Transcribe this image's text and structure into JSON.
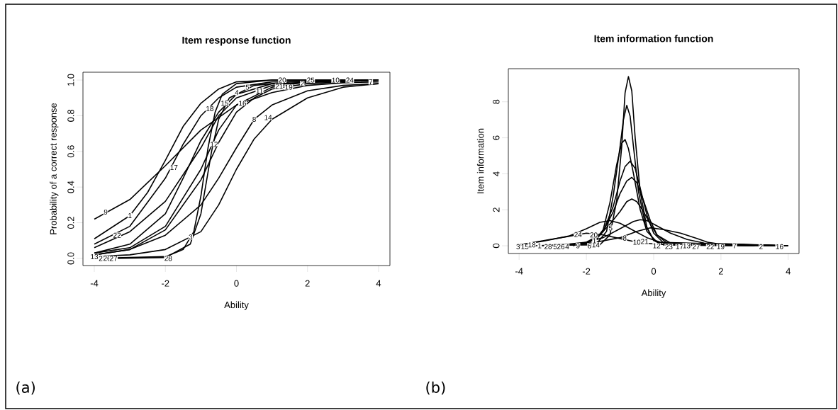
{
  "chart_data": [
    {
      "type": "line",
      "title": "Item response function",
      "xlabel": "Ability",
      "ylabel": "Probability of a correct response",
      "xlim": [
        -4.32,
        4.32
      ],
      "ylim": [
        -0.04,
        1.044
      ],
      "xticks": [
        -4,
        -2,
        0,
        2,
        4
      ],
      "yticks": [
        {
          "value": 0,
          "label": "0.0"
        },
        0.2,
        0.4,
        0.6,
        0.8,
        {
          "value": 1,
          "label": "1.0"
        }
      ],
      "line_style": "solid",
      "series": [
        {
          "color": "#000000",
          "x": [
            -4,
            -3,
            -2,
            -1,
            0,
            1,
            2,
            3,
            4
          ],
          "values": [
            0.22,
            0.33,
            0.52,
            0.72,
            0.86,
            0.93,
            0.97,
            0.985,
            0.99
          ]
        },
        {
          "color": "#000000",
          "x": [
            -4,
            -3,
            -2.5,
            -2,
            -1.5,
            -1,
            -0.5,
            0,
            1,
            4
          ],
          "values": [
            0.11,
            0.24,
            0.37,
            0.55,
            0.74,
            0.87,
            0.95,
            0.99,
            1.0,
            1.0
          ]
        },
        {
          "color": "#000000",
          "x": [
            -4,
            -3,
            -2,
            -1.5,
            -1,
            -0.5,
            0,
            1,
            4
          ],
          "values": [
            0.08,
            0.18,
            0.45,
            0.64,
            0.8,
            0.9,
            0.96,
            0.99,
            1.0
          ]
        },
        {
          "color": "#000000",
          "x": [
            -4,
            -3,
            -2,
            -1,
            -0.5,
            0,
            1,
            2,
            4
          ],
          "values": [
            0.06,
            0.15,
            0.32,
            0.62,
            0.8,
            0.9,
            0.97,
            0.99,
            1.0
          ]
        },
        {
          "color": "#000000",
          "x": [
            -4,
            -2,
            -1.5,
            -1.2,
            -1,
            -0.8,
            -0.6,
            -0.4,
            0,
            1,
            4
          ],
          "values": [
            0,
            0.01,
            0.05,
            0.15,
            0.35,
            0.62,
            0.82,
            0.92,
            0.98,
            1.0,
            1.0
          ]
        },
        {
          "color": "#000000",
          "x": [
            -3.5,
            -2,
            -1.3,
            -1,
            -0.7,
            -0.5,
            -0.2,
            0.5,
            1.5,
            4
          ],
          "values": [
            0,
            0.005,
            0.08,
            0.25,
            0.6,
            0.78,
            0.9,
            0.97,
            0.99,
            1.0
          ]
        },
        {
          "color": "#000000",
          "x": [
            -4,
            -3,
            -2,
            -1,
            -0.5,
            0,
            0.5,
            1,
            2,
            3,
            4
          ],
          "values": [
            0.01,
            0.02,
            0.05,
            0.15,
            0.3,
            0.5,
            0.67,
            0.78,
            0.9,
            0.96,
            0.98
          ]
        },
        {
          "color": "#000000",
          "x": [
            -4,
            -3,
            -2,
            -1,
            -0.5,
            0,
            0.5,
            1,
            2,
            3,
            4
          ],
          "values": [
            0.02,
            0.05,
            0.13,
            0.3,
            0.45,
            0.62,
            0.78,
            0.86,
            0.94,
            0.97,
            0.98
          ]
        },
        {
          "color": "#000000",
          "x": [
            -4,
            -3,
            -2,
            -1,
            -0.5,
            0,
            0.5,
            1,
            2,
            4
          ],
          "values": [
            0.02,
            0.05,
            0.16,
            0.44,
            0.65,
            0.82,
            0.9,
            0.95,
            0.98,
            1.0
          ]
        },
        {
          "color": "#000000",
          "x": [
            -4,
            -3,
            -2,
            -1.5,
            -1,
            -0.5,
            0,
            1,
            4
          ],
          "values": [
            0.03,
            0.08,
            0.25,
            0.45,
            0.66,
            0.82,
            0.92,
            0.98,
            1.0
          ]
        },
        {
          "color": "#000000",
          "x": [
            -4,
            -3,
            -2,
            -1,
            -0.5,
            0,
            1,
            2,
            3
          ],
          "values": [
            0.03,
            0.06,
            0.18,
            0.5,
            0.72,
            0.86,
            0.96,
            0.99,
            1.0
          ]
        }
      ],
      "annotations": [
        {
          "text": "9",
          "x": -3.68,
          "y": 0.26
        },
        {
          "text": "1",
          "x": -3.0,
          "y": 0.24
        },
        {
          "text": "22",
          "x": -3.36,
          "y": 0.13
        },
        {
          "text": "17",
          "x": -1.76,
          "y": 0.51
        },
        {
          "text": "12",
          "x": -0.63,
          "y": 0.64
        },
        {
          "text": "3",
          "x": -1.29,
          "y": 0.12
        },
        {
          "text": "28",
          "x": -1.92,
          "y": 0.0
        },
        {
          "text": "13",
          "x": -4.0,
          "y": 0.01
        },
        {
          "text": "2",
          "x": -3.82,
          "y": 0.0
        },
        {
          "text": "26",
          "x": -3.64,
          "y": 0.0
        },
        {
          "text": "27",
          "x": -3.46,
          "y": 0.0
        },
        {
          "text": "18",
          "x": -0.75,
          "y": 0.84
        },
        {
          "text": "15",
          "x": -0.33,
          "y": 0.87
        },
        {
          "text": "16",
          "x": 0.17,
          "y": 0.87
        },
        {
          "text": "8",
          "x": 0.5,
          "y": 0.78
        },
        {
          "text": "14",
          "x": 0.89,
          "y": 0.79
        },
        {
          "text": "4",
          "x": 0.01,
          "y": 0.93
        },
        {
          "text": "5",
          "x": 0.31,
          "y": 0.96
        },
        {
          "text": "11",
          "x": 0.65,
          "y": 0.94
        },
        {
          "text": "21",
          "x": 1.2,
          "y": 0.965
        },
        {
          "text": "20",
          "x": 1.29,
          "y": 1.0
        },
        {
          "text": "19",
          "x": 1.47,
          "y": 0.96
        },
        {
          "text": "2",
          "x": 1.85,
          "y": 0.98
        },
        {
          "text": "25",
          "x": 2.09,
          "y": 1.0
        },
        {
          "text": "10",
          "x": 2.79,
          "y": 1.0
        },
        {
          "text": "24",
          "x": 3.19,
          "y": 1.0
        },
        {
          "text": "7",
          "x": 3.78,
          "y": 0.99
        },
        "(a)"
      ]
    },
    {
      "type": "line",
      "title": "Item information function",
      "xlabel": "Ability",
      "ylabel": "Item information",
      "xlim": [
        -4.32,
        4.32
      ],
      "ylim": [
        -0.43,
        9.84
      ],
      "xticks": [
        -4,
        -2,
        0,
        2,
        4
      ],
      "yticks": [
        0,
        2,
        4,
        6,
        8
      ],
      "line_style": "solid",
      "series": [
        {
          "color": "#000000",
          "x": [
            -4,
            -1.6,
            -1.3,
            -1.1,
            -0.95,
            -0.85,
            -0.75,
            -0.65,
            -0.55,
            -0.4,
            -0.2,
            0,
            0.3,
            4
          ],
          "values": [
            0,
            0.05,
            0.6,
            2.5,
            5.5,
            8.5,
            9.4,
            8.6,
            6.0,
            3.0,
            1.0,
            0.3,
            0.05,
            0
          ]
        },
        {
          "color": "#000000",
          "x": [
            -3.6,
            -1.7,
            -1.4,
            -1.2,
            -1.0,
            -0.9,
            -0.8,
            -0.7,
            -0.6,
            -0.45,
            -0.25,
            0,
            0.3,
            4
          ],
          "values": [
            0,
            0.1,
            0.8,
            2.8,
            5.5,
            7.0,
            7.8,
            7.2,
            5.5,
            3.0,
            1.2,
            0.3,
            0.05,
            0
          ]
        },
        {
          "color": "#000000",
          "x": [
            -3.2,
            -1.8,
            -1.5,
            -1.3,
            -1.1,
            -0.95,
            -0.85,
            -0.75,
            -0.6,
            -0.4,
            -0.2,
            0.1,
            4
          ],
          "values": [
            0,
            0.15,
            0.9,
            2.4,
            4.5,
            5.7,
            5.9,
            5.4,
            4.0,
            2.0,
            0.8,
            0.2,
            0
          ]
        },
        {
          "color": "#000000",
          "x": [
            -2.8,
            -1.8,
            -1.5,
            -1.2,
            -1.0,
            -0.85,
            -0.7,
            -0.55,
            -0.4,
            -0.2,
            0,
            0.3,
            4
          ],
          "values": [
            0,
            0.15,
            0.8,
            2.2,
            3.6,
            4.4,
            4.7,
            4.3,
            3.2,
            1.7,
            0.7,
            0.15,
            0
          ]
        },
        {
          "color": "#000000",
          "x": [
            -2.6,
            -1.9,
            -1.5,
            -1.2,
            -1.0,
            -0.8,
            -0.65,
            -0.5,
            -0.3,
            -0.1,
            0.1,
            0.4,
            4
          ],
          "values": [
            0,
            0.2,
            0.8,
            1.9,
            2.9,
            3.6,
            3.8,
            3.5,
            2.5,
            1.4,
            0.6,
            0.15,
            0
          ]
        },
        {
          "color": "#000000",
          "x": [
            -2.4,
            -2,
            -1.6,
            -1.3,
            -1.0,
            -0.8,
            -0.65,
            -0.5,
            -0.3,
            -0.1,
            0.1,
            0.5,
            4
          ],
          "values": [
            0,
            0.2,
            0.6,
            1.2,
            1.9,
            2.45,
            2.6,
            2.45,
            1.9,
            1.2,
            0.6,
            0.15,
            0
          ]
        },
        {
          "color": "#000000",
          "x": [
            -3.4,
            -2.5,
            -2,
            -1.5,
            -1,
            -0.6,
            -0.4,
            -0.2,
            0,
            0.5,
            1,
            1.5,
            4
          ],
          "values": [
            0,
            0.1,
            0.2,
            0.45,
            0.95,
            1.35,
            1.45,
            1.4,
            1.2,
            0.7,
            0.35,
            0.15,
            0
          ]
        },
        {
          "color": "#000000",
          "x": [
            -4,
            -3.3,
            -2.5,
            -2,
            -1.6,
            -1.3,
            -1,
            -0.6,
            -0.2,
            0.2,
            1,
            4
          ],
          "values": [
            0.05,
            0.25,
            0.55,
            0.95,
            1.3,
            1.4,
            1.25,
            0.85,
            0.45,
            0.2,
            0.05,
            0
          ]
        },
        {
          "color": "#000000",
          "x": [
            -3.0,
            -2,
            -1,
            -0.5,
            -0.1,
            0.3,
            0.8,
            1.3,
            1.6,
            2,
            4
          ],
          "values": [
            0,
            0.1,
            0.45,
            0.8,
            1.0,
            0.9,
            0.7,
            0.4,
            0.2,
            0.08,
            0
          ]
        },
        {
          "color": "#000000",
          "x": [
            -4,
            -3.3,
            -2.6,
            -2,
            -1.5,
            -1,
            -0.5,
            0,
            1,
            3
          ],
          "values": [
            0.05,
            0.28,
            0.5,
            0.7,
            0.6,
            0.4,
            0.2,
            0.1,
            0.02,
            0
          ]
        }
      ],
      "annotations": [
        {
          "text": "3",
          "x": -4.03,
          "y": -0.05
        },
        {
          "text": "15",
          "x": -3.83,
          "y": -0.05
        },
        {
          "text": "18",
          "x": -3.62,
          "y": 0.05
        },
        {
          "text": "1",
          "x": -3.39,
          "y": 0.0
        },
        {
          "text": "28",
          "x": -3.14,
          "y": -0.05
        },
        {
          "text": "5",
          "x": -2.93,
          "y": -0.05
        },
        {
          "text": "26",
          "x": -2.76,
          "y": -0.05
        },
        {
          "text": "4",
          "x": -2.57,
          "y": -0.05
        },
        {
          "text": "9",
          "x": -2.25,
          "y": 0.0
        },
        {
          "text": "6",
          "x": -1.91,
          "y": 0.0
        },
        {
          "text": "14",
          "x": -1.72,
          "y": 0.05
        },
        {
          "text": "10",
          "x": -0.5,
          "y": 0.2
        },
        {
          "text": "21",
          "x": -0.27,
          "y": 0.24
        },
        {
          "text": "12",
          "x": 0.09,
          "y": 0.0
        },
        {
          "text": "23",
          "x": 0.45,
          "y": -0.05
        },
        {
          "text": "17",
          "x": 0.77,
          "y": -0.05
        },
        {
          "text": "13",
          "x": 0.98,
          "y": 0.0
        },
        {
          "text": "27",
          "x": 1.26,
          "y": -0.05
        },
        {
          "text": "22",
          "x": 1.68,
          "y": -0.05
        },
        {
          "text": "19",
          "x": 1.99,
          "y": -0.05
        },
        {
          "text": "7",
          "x": 2.41,
          "y": 0.0
        },
        {
          "text": "2",
          "x": 3.19,
          "y": -0.05
        },
        {
          "text": "16",
          "x": 3.74,
          "y": -0.05
        },
        {
          "text": "24",
          "x": -2.25,
          "y": 0.62
        },
        {
          "text": "20",
          "x": -1.78,
          "y": 0.6
        },
        {
          "text": "5",
          "x": -1.28,
          "y": 0.98
        },
        {
          "text": "1",
          "x": -1.76,
          "y": 0.28
        },
        {
          "text": "8",
          "x": -0.86,
          "y": 0.43
        },
        "(b)"
      ]
    }
  ]
}
